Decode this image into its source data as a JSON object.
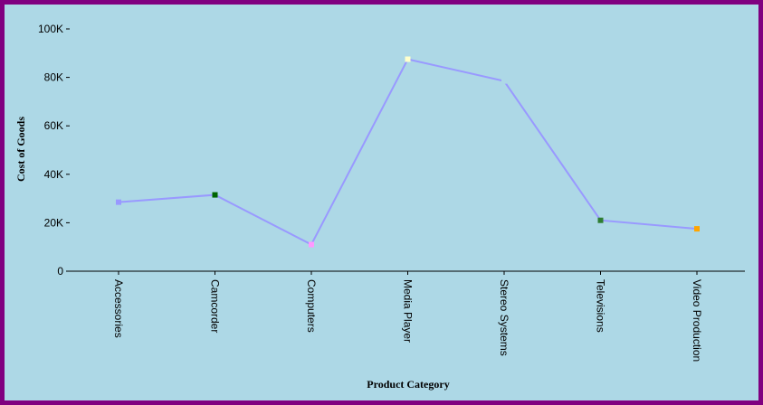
{
  "chart_data": {
    "type": "line",
    "title": "",
    "xlabel": "Product Category",
    "ylabel": "Cost of Goods",
    "categories": [
      "Accessories",
      "Camcorder",
      "Computers",
      "Media Player",
      "Stereo Systems",
      "Televisions",
      "Video Production"
    ],
    "series": [
      {
        "values": [
          28500,
          31500,
          11000,
          87500,
          78500,
          21000,
          17500
        ],
        "line_color": "#9999ff",
        "marker_colors": [
          "#9999ff",
          "#006400",
          "#ff99ff",
          "#ffffcc",
          "#add8e6",
          "#2e7d32",
          "#ffa500"
        ]
      }
    ],
    "ylim": [
      0,
      100000
    ],
    "yticks": [
      0,
      20000,
      40000,
      60000,
      80000,
      100000
    ],
    "ytick_labels": [
      "0",
      "20K",
      "40K",
      "60K",
      "80K",
      "100K"
    ],
    "grid": false,
    "legend": "none"
  },
  "colors": {
    "background": "#add8e6",
    "border": "#800080",
    "axis": "#000000"
  }
}
